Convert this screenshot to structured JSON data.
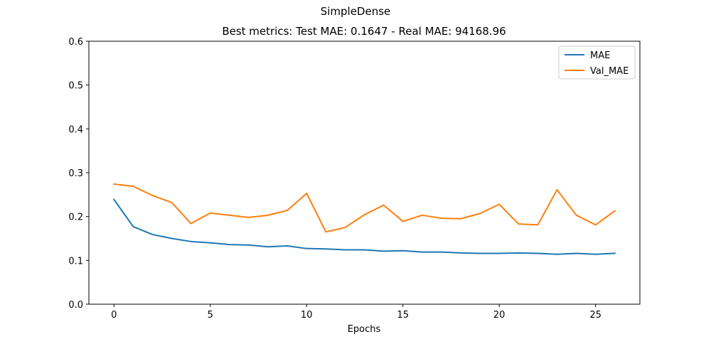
{
  "figure": {
    "suptitle": "SimpleDense",
    "title": "Best metrics: Test MAE: 0.1647 - Real MAE: 94168.96"
  },
  "chart_data": {
    "type": "line",
    "title": "Best metrics: Test MAE: 0.1647 - Real MAE: 94168.96",
    "xlabel": "Epochs",
    "ylabel": "",
    "xlim": [
      -1.3,
      27.3
    ],
    "ylim": [
      0,
      0.6
    ],
    "xticks": [
      0,
      5,
      10,
      15,
      20,
      25
    ],
    "yticks": [
      0.0,
      0.1,
      0.2,
      0.3,
      0.4,
      0.5,
      0.6
    ],
    "ytick_labels": [
      "0.0",
      "0.1",
      "0.2",
      "0.3",
      "0.4",
      "0.5",
      "0.6"
    ],
    "grid": false,
    "legend_position": "upper right",
    "x": [
      0,
      1,
      2,
      3,
      4,
      5,
      6,
      7,
      8,
      9,
      10,
      11,
      12,
      13,
      14,
      15,
      16,
      17,
      18,
      19,
      20,
      21,
      22,
      23,
      24,
      25,
      26
    ],
    "series": [
      {
        "name": "MAE",
        "color": "#1f77b4",
        "values": [
          0.239,
          0.177,
          0.159,
          0.15,
          0.143,
          0.14,
          0.136,
          0.135,
          0.131,
          0.133,
          0.127,
          0.126,
          0.124,
          0.124,
          0.121,
          0.122,
          0.119,
          0.119,
          0.117,
          0.116,
          0.116,
          0.117,
          0.116,
          0.114,
          0.116,
          0.114,
          0.116
        ]
      },
      {
        "name": "Val_MAE",
        "color": "#ff7f0e",
        "values": [
          0.274,
          0.269,
          0.248,
          0.232,
          0.184,
          0.208,
          0.203,
          0.198,
          0.203,
          0.214,
          0.253,
          0.165,
          0.175,
          0.204,
          0.226,
          0.189,
          0.203,
          0.196,
          0.195,
          0.207,
          0.228,
          0.183,
          0.181,
          0.261,
          0.203,
          0.181,
          0.213
        ]
      }
    ]
  }
}
